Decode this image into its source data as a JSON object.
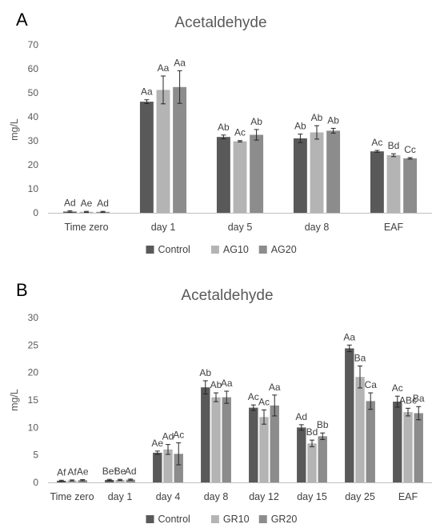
{
  "chart_data": [
    {
      "panel": "A",
      "type": "bar",
      "title": "Acetaldehyde",
      "ylabel": "mg/L",
      "xlabel": "",
      "ylim": [
        0,
        70
      ],
      "yticks": [
        0,
        10,
        20,
        30,
        40,
        50,
        60,
        70
      ],
      "grid": false,
      "legend": "bottom",
      "categories": [
        "Time zero",
        "day 1",
        "day 5",
        "day 8",
        "EAF"
      ],
      "series": [
        {
          "name": "Control",
          "color": "#595959",
          "values": [
            0.5,
            46.3,
            31.6,
            31.0,
            25.6
          ],
          "errors": [
            0.3,
            0.8,
            0.8,
            1.8,
            0.4
          ],
          "labels": [
            "Ad",
            "Aa",
            "Ab",
            "Ab",
            "Ac"
          ]
        },
        {
          "name": "AG10",
          "color": "#b4b4b4",
          "values": [
            0.4,
            51.2,
            29.8,
            33.5,
            24.0
          ],
          "errors": [
            0.2,
            5.8,
            0.3,
            2.8,
            0.6
          ],
          "labels": [
            "Ae",
            "Aa",
            "Ac",
            "Ab",
            "Bd"
          ]
        },
        {
          "name": "AG20",
          "color": "#8c8c8c",
          "values": [
            0.4,
            52.4,
            32.5,
            34.2,
            22.7
          ],
          "errors": [
            0.2,
            6.8,
            2.2,
            1.0,
            0.3
          ],
          "labels": [
            "Ad",
            "Aa",
            "Ab",
            "Ab",
            "Cc"
          ]
        }
      ]
    },
    {
      "panel": "B",
      "type": "bar",
      "title": "Acetaldehyde",
      "ylabel": "mg/L",
      "xlabel": "",
      "ylim": [
        0,
        30
      ],
      "yticks": [
        0,
        5,
        10,
        15,
        20,
        25,
        30
      ],
      "grid": false,
      "legend": "bottom",
      "categories": [
        "Time zero",
        "day 1",
        "day 4",
        "day 8",
        "day 12",
        "day 15",
        "day 25",
        "EAF"
      ],
      "series": [
        {
          "name": "Control",
          "color": "#595959",
          "values": [
            0.3,
            0.45,
            5.4,
            17.3,
            13.6,
            10.0,
            24.4,
            14.7
          ],
          "errors": [
            0.1,
            0.1,
            0.3,
            1.2,
            0.5,
            0.5,
            0.6,
            1.0
          ],
          "labels": [
            "Af",
            "Bef",
            "Ae",
            "Ab",
            "Ac",
            "Ad",
            "Aa",
            "Ac"
          ]
        },
        {
          "name": "GR10",
          "color": "#b4b4b4",
          "values": [
            0.35,
            0.45,
            6.0,
            15.5,
            11.9,
            7.1,
            19.2,
            12.8
          ],
          "errors": [
            0.1,
            0.1,
            0.9,
            0.8,
            1.3,
            0.6,
            2.0,
            0.7
          ],
          "labels": [
            "Af",
            "Be",
            "Ad",
            "Ab",
            "Ac",
            "Bd",
            "Ba",
            "ABc"
          ]
        },
        {
          "name": "GR20",
          "color": "#8c8c8c",
          "values": [
            0.4,
            0.5,
            5.2,
            15.5,
            14.0,
            8.4,
            14.8,
            12.6
          ],
          "errors": [
            0.1,
            0.1,
            2.0,
            1.1,
            1.9,
            0.6,
            1.5,
            1.2
          ],
          "labels": [
            "Ae",
            "Ad",
            "Ac",
            "Aa",
            "Aa",
            "Bb",
            "Ca",
            "Ba"
          ]
        }
      ]
    }
  ]
}
